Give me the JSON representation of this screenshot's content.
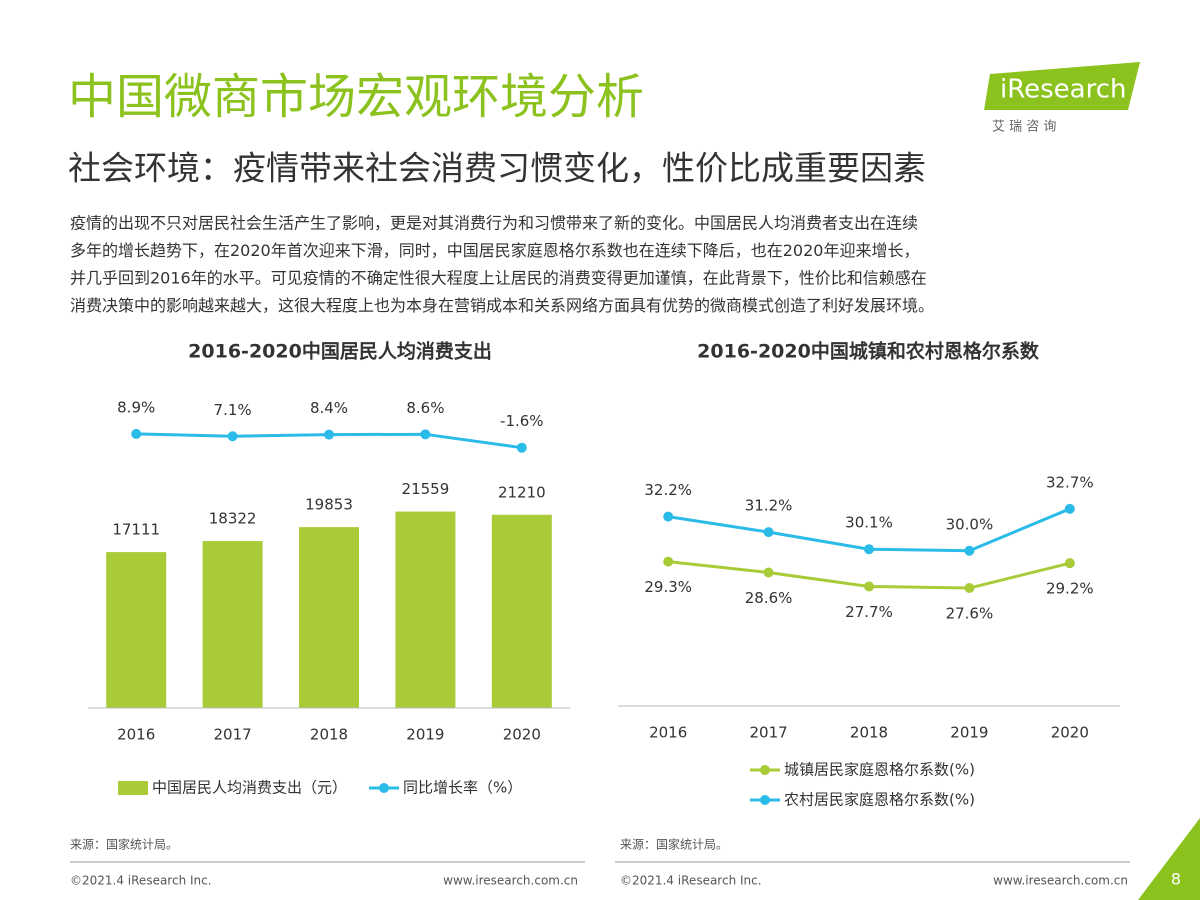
{
  "header": {
    "title": "中国微商市场宏观环境分析",
    "subtitle": "社会环境：疫情带来社会消费习惯变化，性价比成重要因素",
    "logo": "iResearch",
    "logo_sub": "艾 瑞 咨 询"
  },
  "body": {
    "lines": [
      "疫情的出现不只对居民社会生活产生了影响，更是对其消费行为和习惯带来了新的变化。中国居民人均消费者支出在连续",
      "多年的增长趋势下，在2020年首次迎来下滑，同时，中国居民家庭恩格尔系数也在连续下降后，也在2020年迎来增长，",
      "并几乎回到2016年的水平。可见疫情的不确定性很大程度上让居民的消费变得更加谨慎，在此背景下，性价比和信赖感在",
      "消费决策中的影响越来越大，这很大程度上也为本身在营销成本和关系网络方面具有优势的微商模式创造了利好发展环境。"
    ]
  },
  "chart_data": [
    {
      "type": "combo",
      "title": "2016-2020中国居民人均消费支出",
      "categories": [
        "2016",
        "2017",
        "2018",
        "2019",
        "2020"
      ],
      "ylim": [
        0,
        36000
      ],
      "y2lim": [
        -200,
        50
      ],
      "series": [
        {
          "name": "中国居民人均消费支出（元）",
          "type": "bar",
          "color": "#a9cb38",
          "values": [
            17111,
            18322,
            19853,
            21559,
            21210
          ]
        },
        {
          "name": "同比增长率（%）",
          "type": "line",
          "axis": "y2",
          "color": "#2bbbe8",
          "values": [
            8.9,
            7.1,
            8.4,
            8.6,
            -1.6
          ],
          "value_labels": [
            "8.9%",
            "7.1%",
            "8.4%",
            "8.6%",
            "-1.6%"
          ]
        }
      ]
    },
    {
      "type": "line",
      "title": "2016-2020中国城镇和农村恩格尔系数",
      "categories": [
        "2016",
        "2017",
        "2018",
        "2019",
        "2020"
      ],
      "ylim": [
        20,
        41
      ],
      "series": [
        {
          "name": "城镇居民家庭恩格尔系数(%)",
          "color": "#a9cb38",
          "values": [
            29.3,
            28.6,
            27.7,
            27.6,
            29.2
          ],
          "value_labels": [
            "29.3%",
            "28.6%",
            "27.7%",
            "27.6%",
            "29.2%"
          ]
        },
        {
          "name": "农村居民家庭恩格尔系数(%)",
          "color": "#2bbbe8",
          "values": [
            32.2,
            31.2,
            30.1,
            30.0,
            32.7
          ],
          "value_labels": [
            "32.2%",
            "31.2%",
            "30.1%",
            "30.0%",
            "32.7%"
          ]
        }
      ]
    }
  ],
  "footer": {
    "source": "来源：国家统计局。",
    "copyright": "©2021.4 iResearch Inc.",
    "url": "www.iresearch.com.cn",
    "page_number": "8"
  }
}
